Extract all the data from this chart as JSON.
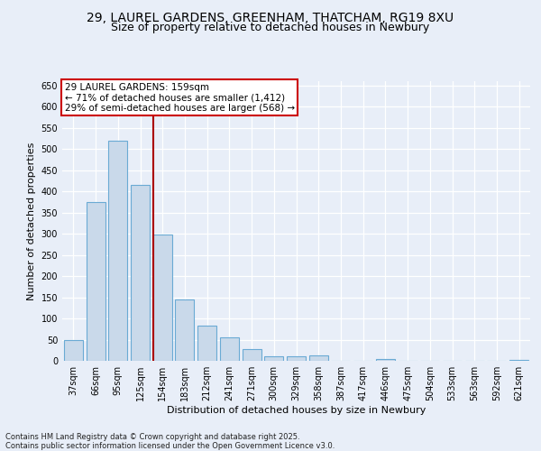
{
  "title1": "29, LAUREL GARDENS, GREENHAM, THATCHAM, RG19 8XU",
  "title2": "Size of property relative to detached houses in Newbury",
  "xlabel": "Distribution of detached houses by size in Newbury",
  "ylabel": "Number of detached properties",
  "categories": [
    "37sqm",
    "66sqm",
    "95sqm",
    "125sqm",
    "154sqm",
    "183sqm",
    "212sqm",
    "241sqm",
    "271sqm",
    "300sqm",
    "329sqm",
    "358sqm",
    "387sqm",
    "417sqm",
    "446sqm",
    "475sqm",
    "504sqm",
    "533sqm",
    "563sqm",
    "592sqm",
    "621sqm"
  ],
  "values": [
    50,
    375,
    520,
    415,
    298,
    145,
    83,
    55,
    28,
    10,
    10,
    12,
    0,
    0,
    4,
    0,
    0,
    0,
    0,
    0,
    3
  ],
  "bar_color": "#c9d9ea",
  "bar_edge_color": "#6aaad4",
  "annotation_text": "29 LAUREL GARDENS: 159sqm\n← 71% of detached houses are smaller (1,412)\n29% of semi-detached houses are larger (568) →",
  "vline_color": "#aa0000",
  "ann_edge_color": "#cc0000",
  "ann_bg": "white",
  "footer1": "Contains HM Land Registry data © Crown copyright and database right 2025.",
  "footer2": "Contains public sector information licensed under the Open Government Licence v3.0.",
  "bg_color": "#e8eef8",
  "ylim_max": 660,
  "yticks": [
    0,
    50,
    100,
    150,
    200,
    250,
    300,
    350,
    400,
    450,
    500,
    550,
    600,
    650
  ],
  "grid_color": "white",
  "title_fontsize": 10,
  "subtitle_fontsize": 9,
  "axis_label_fontsize": 8,
  "tick_fontsize": 7,
  "footer_fontsize": 6,
  "ann_fontsize": 7.5
}
